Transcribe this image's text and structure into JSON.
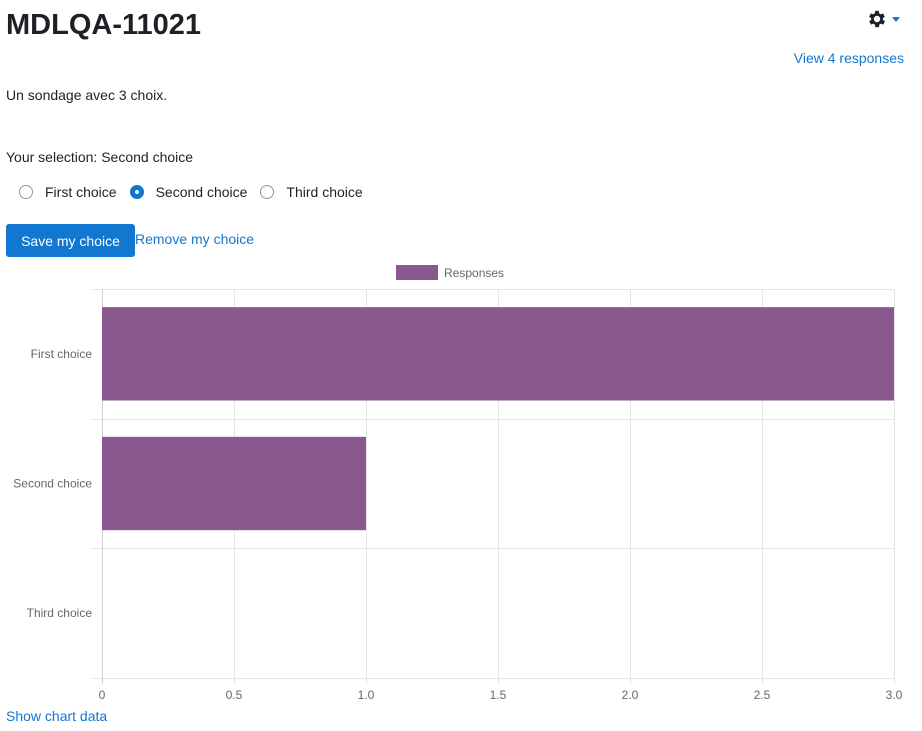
{
  "page": {
    "title": "MDLQA-11021",
    "view_responses": "View 4 responses",
    "intro": "Un sondage avec 3 choix.",
    "selection": "Your selection: Second choice"
  },
  "options": [
    {
      "label": "First choice",
      "checked": false
    },
    {
      "label": "Second choice",
      "checked": true
    },
    {
      "label": "Third choice",
      "checked": false
    }
  ],
  "actions": {
    "save": "Save my choice",
    "remove": "Remove my choice",
    "show_chart_data": "Show chart data"
  },
  "icons": {
    "settings": "gear-icon",
    "settings_menu": "caret-down-icon"
  },
  "colors": {
    "accent": "#1177d1",
    "bar": "#88588f"
  },
  "chart_data": {
    "type": "bar",
    "orientation": "horizontal",
    "categories": [
      "First choice",
      "Second choice",
      "Third choice"
    ],
    "series": [
      {
        "name": "Responses",
        "values": [
          3,
          1,
          0
        ]
      }
    ],
    "xlim": [
      0,
      3
    ],
    "xticks": [
      "0",
      "0.5",
      "1.0",
      "1.5",
      "2.0",
      "2.5",
      "3.0"
    ],
    "legend": "top-center",
    "grid": true
  }
}
